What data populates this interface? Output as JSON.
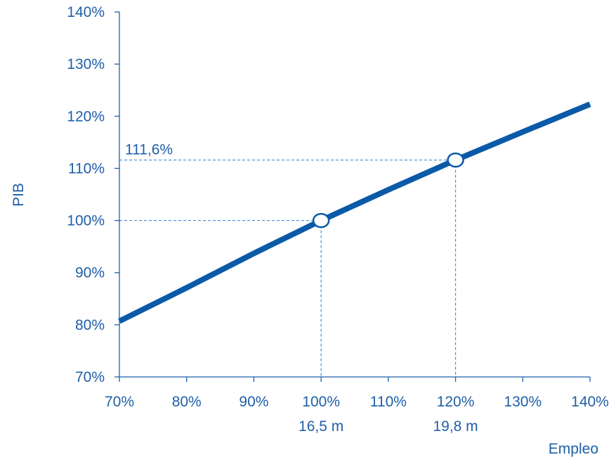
{
  "chart_data": {
    "type": "line",
    "xlabel": "Empleo",
    "ylabel": "PIB",
    "xlim": [
      70,
      140
    ],
    "ylim": [
      70,
      140
    ],
    "x_ticks": [
      "70%",
      "80%",
      "90%",
      "100%",
      "110%",
      "120%",
      "130%",
      "140%"
    ],
    "y_ticks": [
      "70%",
      "80%",
      "90%",
      "100%",
      "110%",
      "120%",
      "130%",
      "140%"
    ],
    "grid": false,
    "series": [
      {
        "x": [
          70,
          80,
          90,
          100,
          110,
          120,
          130,
          140
        ],
        "y": [
          80.7,
          87.1,
          93.7,
          100.0,
          105.9,
          111.6,
          117.0,
          122.3
        ]
      }
    ],
    "markers": [
      {
        "x": 100,
        "y": 100,
        "x_annotation": "16,5 m"
      },
      {
        "x": 120,
        "y": 111.6,
        "x_annotation": "19,8 m",
        "y_annotation": "111,6%"
      }
    ],
    "colors": {
      "line": "#0a5aa8",
      "text": "#1f5fa8",
      "guide": "#3d8fd9",
      "axis": "#1f5fa8",
      "marker_fill": "#ffffff"
    }
  }
}
